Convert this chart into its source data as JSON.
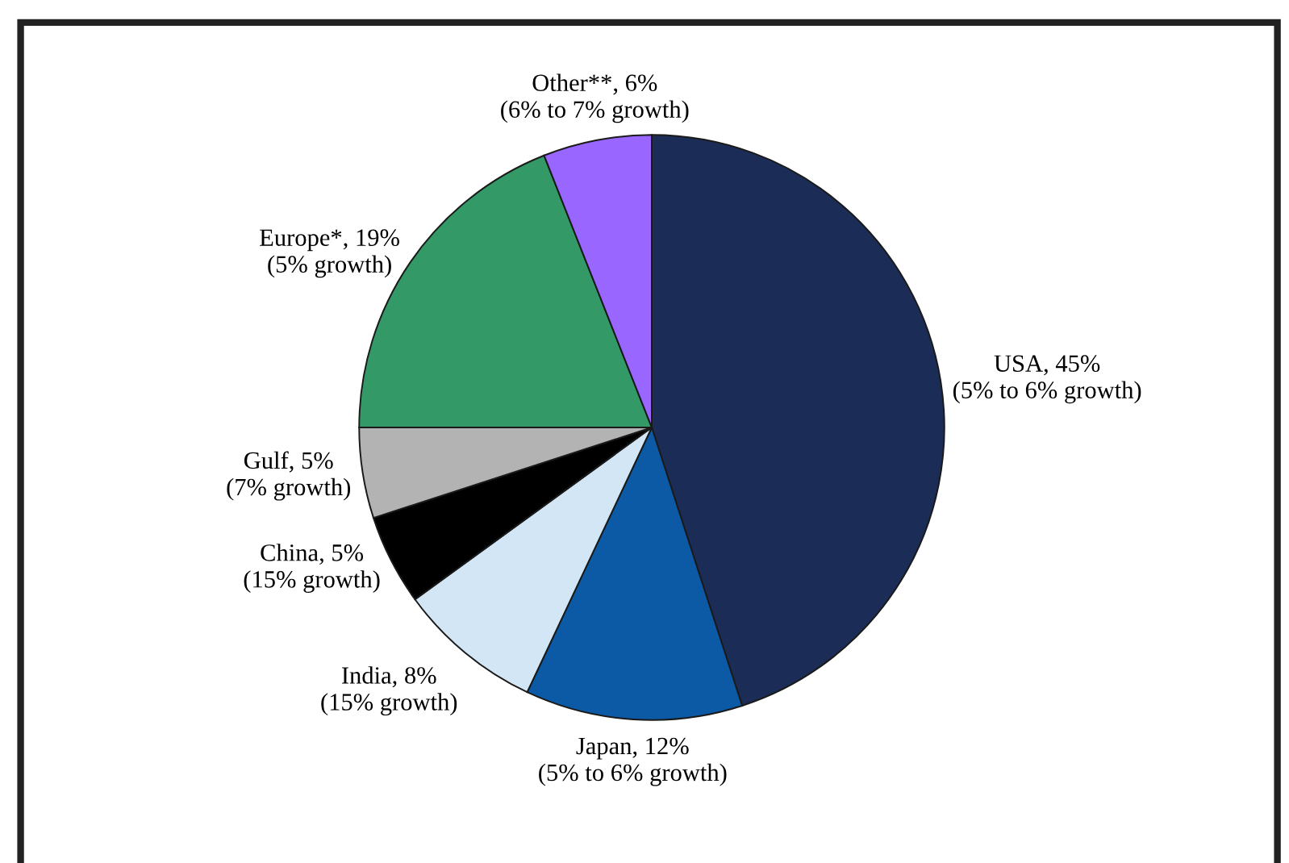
{
  "chart_data": {
    "type": "pie",
    "categories": [
      "USA",
      "Japan",
      "India",
      "China",
      "Gulf",
      "Europe*",
      "Other**"
    ],
    "values": [
      45,
      12,
      8,
      5,
      5,
      19,
      6
    ],
    "value_labels": [
      "45%",
      "12%",
      "8%",
      "5%",
      "5%",
      "19%",
      "6%"
    ],
    "colors": [
      "#1b2d57",
      "#0c5aa6",
      "#d3e6f5",
      "#000000",
      "#b3b3b3",
      "#339966",
      "#9966ff"
    ],
    "annotations": [
      "(5% to 6% growth)",
      "(5% to 6% growth)",
      "(15% growth)",
      "(15% growth)",
      "(7% growth)",
      "(5% growth)",
      "(6% to 7% growth)"
    ],
    "legend": false
  }
}
